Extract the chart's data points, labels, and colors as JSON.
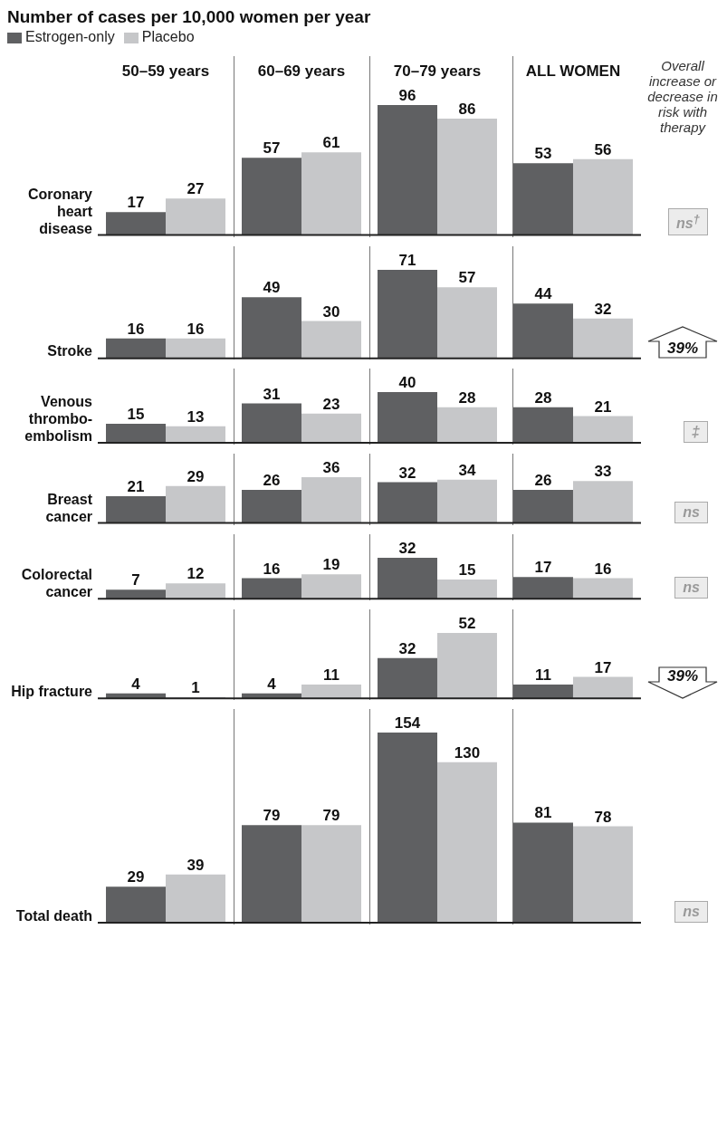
{
  "chart_data": [
    {
      "type": "bar",
      "title": "Number of cases per 10,000 women per year",
      "legend": "top left",
      "tick_labels": "x",
      "data_labels": true,
      "ylabel": "Coronary heart disease",
      "categories": [
        "50–59 years",
        "60–69 years",
        "70–79 years",
        "ALL WOMEN"
      ],
      "series": [
        {
          "name": "Estrogen-only",
          "color": "#5f6062",
          "values": [
            17,
            57,
            96,
            53
          ]
        },
        {
          "name": "Placebo",
          "color": "#c6c7c9",
          "values": [
            27,
            61,
            86,
            56
          ]
        }
      ],
      "annotations": [
        "Overall increase or decrease in risk with therapy",
        "ns$^{†}$"
      ]
    },
    {
      "type": "bar",
      "tick_labels": false,
      "data_labels": true,
      "ylabel": "Stroke",
      "series": [
        {
          "color": "#5f6062",
          "values": [
            16,
            49,
            71,
            44
          ]
        },
        {
          "color": "#c6c7c9",
          "values": [
            16,
            30,
            57,
            32
          ]
        }
      ],
      "annotations": [
        "39%"
      ]
    },
    {
      "type": "bar",
      "tick_labels": false,
      "data_labels": true,
      "ylabel": "Venous thrombo-embolism",
      "series": [
        {
          "color": "#5f6062",
          "values": [
            15,
            31,
            40,
            28
          ]
        },
        {
          "color": "#c6c7c9",
          "values": [
            13,
            23,
            28,
            21
          ]
        }
      ],
      "annotations": [
        "‡"
      ]
    },
    {
      "type": "bar",
      "tick_labels": false,
      "data_labels": true,
      "ylabel": "Breast cancer",
      "series": [
        {
          "color": "#5f6062",
          "values": [
            21,
            26,
            32,
            26
          ]
        },
        {
          "color": "#c6c7c9",
          "values": [
            29,
            36,
            34,
            33
          ]
        }
      ],
      "annotations": [
        "ns"
      ]
    },
    {
      "type": "bar",
      "tick_labels": false,
      "data_labels": true,
      "ylabel": "Colorectal cancer",
      "series": [
        {
          "color": "#5f6062",
          "values": [
            7,
            16,
            32,
            17
          ]
        },
        {
          "color": "#c6c7c9",
          "values": [
            12,
            19,
            15,
            16
          ]
        }
      ],
      "annotations": [
        "ns"
      ]
    },
    {
      "type": "bar",
      "tick_labels": false,
      "data_labels": true,
      "ylabel": "Hip fracture",
      "series": [
        {
          "color": "#5f6062",
          "values": [
            4,
            4,
            32,
            11
          ]
        },
        {
          "color": "#c6c7c9",
          "values": [
            1,
            11,
            52,
            17
          ]
        }
      ],
      "annotations": [
        "39%"
      ]
    },
    {
      "type": "bar",
      "tick_labels": false,
      "data_labels": true,
      "ylabel": "Total death",
      "series": [
        {
          "color": "#5f6062",
          "values": [
            29,
            79,
            154,
            81
          ]
        },
        {
          "color": "#c6c7c9",
          "values": [
            39,
            79,
            130,
            78
          ]
        }
      ],
      "annotations": [
        "ns"
      ]
    }
  ]
}
